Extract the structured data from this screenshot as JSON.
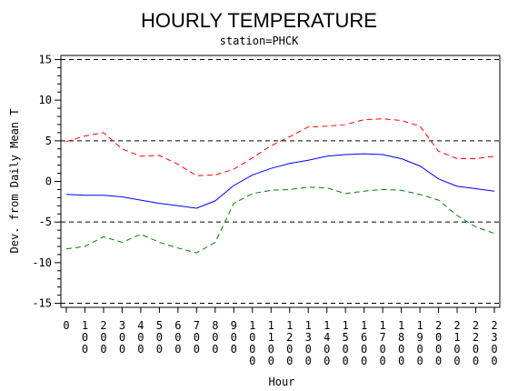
{
  "chart_data": {
    "type": "line",
    "title": "HOURLY TEMPERATURE",
    "subtitle": "station=PHCK",
    "xlabel": "Hour",
    "ylabel": "Dev. from Daily Mean T",
    "xlim": [
      0,
      2300
    ],
    "ylim": [
      -15.5,
      15.5
    ],
    "yticks": [
      -15,
      -10,
      -5,
      0,
      5,
      10,
      15
    ],
    "y_minor_step": 1,
    "xtick_labels": [
      "0",
      "100",
      "200",
      "300",
      "400",
      "500",
      "600",
      "700",
      "800",
      "900",
      "1000",
      "1100",
      "1200",
      "1300",
      "1400",
      "1500",
      "1600",
      "1700",
      "1800",
      "1900",
      "2000",
      "2100",
      "2200",
      "2300"
    ],
    "reference_lines": [
      -15,
      -5,
      5,
      15
    ],
    "x": [
      0,
      100,
      200,
      300,
      400,
      500,
      600,
      700,
      800,
      900,
      1000,
      1100,
      1200,
      1300,
      1400,
      1500,
      1600,
      1700,
      1800,
      1900,
      2000,
      2100,
      2200,
      2300
    ],
    "series": [
      {
        "color": "#ff0000",
        "dash": "dashed",
        "values": [
          4.9,
          5.6,
          6.0,
          4.0,
          3.1,
          3.2,
          2.1,
          0.7,
          0.8,
          1.5,
          2.9,
          4.4,
          5.5,
          6.7,
          6.8,
          7.0,
          7.6,
          7.7,
          7.5,
          6.8,
          3.7,
          2.8,
          2.8,
          3.1
        ]
      },
      {
        "color": "#0000ff",
        "dash": "solid",
        "values": [
          -1.6,
          -1.7,
          -1.7,
          -1.9,
          -2.3,
          -2.7,
          -3.0,
          -3.3,
          -2.4,
          -0.5,
          0.8,
          1.6,
          2.2,
          2.6,
          3.1,
          3.3,
          3.4,
          3.3,
          2.8,
          1.9,
          0.3,
          -0.6,
          -0.9,
          -1.2
        ]
      },
      {
        "color": "#008000",
        "dash": "dashed",
        "values": [
          -8.3,
          -8.0,
          -6.8,
          -7.5,
          -6.5,
          -7.5,
          -8.2,
          -8.8,
          -7.5,
          -2.7,
          -1.5,
          -1.1,
          -1.0,
          -0.7,
          -0.8,
          -1.5,
          -1.2,
          -1.0,
          -1.1,
          -1.6,
          -2.3,
          -4.2,
          -5.6,
          -6.4
        ]
      }
    ]
  }
}
